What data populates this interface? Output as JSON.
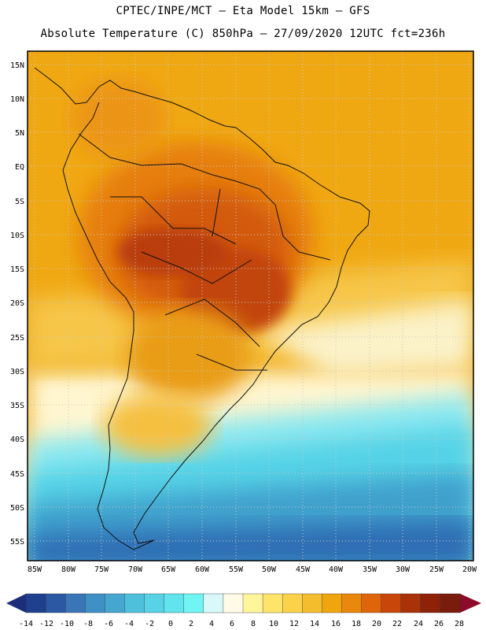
{
  "header": {
    "line1": "CPTEC/INPE/MCT –  Eta Model 15km – GFS",
    "line2": "Absolute Temperature (C) 850hPa – 27/09/2020 12UTC fct=236h"
  },
  "map": {
    "lat_labels": [
      "15N",
      "10N",
      "5N",
      "EQ",
      "5S",
      "10S",
      "15S",
      "20S",
      "25S",
      "30S",
      "35S",
      "40S",
      "45S",
      "50S",
      "55S"
    ],
    "lon_labels": [
      "85W",
      "80W",
      "75W",
      "70W",
      "65W",
      "60W",
      "55W",
      "50W",
      "45W",
      "40W",
      "35W",
      "30W",
      "25W",
      "20W"
    ]
  },
  "colorbar": {
    "labels": [
      "-14",
      "-12",
      "-10",
      "-8",
      "-6",
      "-4",
      "-2",
      "0",
      "2",
      "4",
      "6",
      "8",
      "10",
      "12",
      "14",
      "16",
      "18",
      "20",
      "22",
      "24",
      "26",
      "28"
    ],
    "colors": [
      "#1f3f8f",
      "#2a58a3",
      "#3a75b8",
      "#3f90c4",
      "#45a6d0",
      "#4ec0dc",
      "#57d2e6",
      "#62e4ee",
      "#70f4f4",
      "#d8f8fa",
      "#fffbe6",
      "#fff59a",
      "#ffe46a",
      "#fbd24a",
      "#f4bd2e",
      "#efa50e",
      "#e9880c",
      "#df640a",
      "#c9460a",
      "#a93208",
      "#8e2208",
      "#7a1c0c"
    ],
    "under_color": "#1c2e7a",
    "over_color": "#8c0a2a"
  }
}
